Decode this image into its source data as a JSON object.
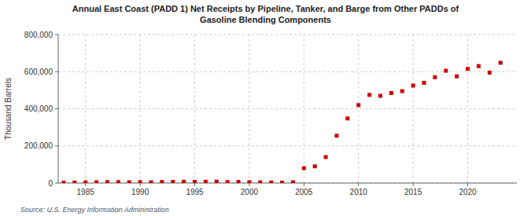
{
  "chart_data": {
    "type": "scatter",
    "title": "Annual East Coast (PADD 1) Net Receipts by Pipeline, Tanker, and Barge from Other PADDs of\nGasoline Blending Components",
    "ylabel": "Thousand Barrels",
    "annotations": [
      "Source: U.S. Energy Information Administration"
    ],
    "color": "#cc0000",
    "marker": "square",
    "grid": true,
    "x": [
      1983,
      1984,
      1985,
      1986,
      1987,
      1988,
      1989,
      1990,
      1991,
      1992,
      1993,
      1994,
      1995,
      1996,
      1997,
      1998,
      1999,
      2000,
      2001,
      2002,
      2003,
      2004,
      2005,
      2006,
      2007,
      2008,
      2009,
      2010,
      2011,
      2012,
      2013,
      2014,
      2015,
      2016,
      2017,
      2018,
      2019,
      2020,
      2021,
      2022,
      2023
    ],
    "values": [
      2000,
      3000,
      3500,
      4000,
      5000,
      5000,
      4000,
      5000,
      4000,
      5500,
      6000,
      7000,
      6000,
      7000,
      7500,
      5000,
      6000,
      4500,
      3500,
      3000,
      2500,
      4000,
      80000,
      90000,
      140000,
      255000,
      348000,
      420000,
      475000,
      470000,
      485000,
      495000,
      525000,
      540000,
      570000,
      605000,
      575000,
      615000,
      630000,
      595000,
      648000
    ],
    "xlim": [
      1982.5,
      2024.5
    ],
    "xticks": [
      1985,
      1990,
      1995,
      2000,
      2005,
      2010,
      2015,
      2020
    ],
    "ylim": [
      0,
      800000
    ],
    "yticks": [
      0,
      {
        "value": 200000,
        "label": "200,000"
      },
      {
        "value": 400000,
        "label": "400,000"
      },
      {
        "value": 600000,
        "label": "600,000"
      },
      {
        "value": 800000,
        "label": "800,000"
      }
    ]
  }
}
